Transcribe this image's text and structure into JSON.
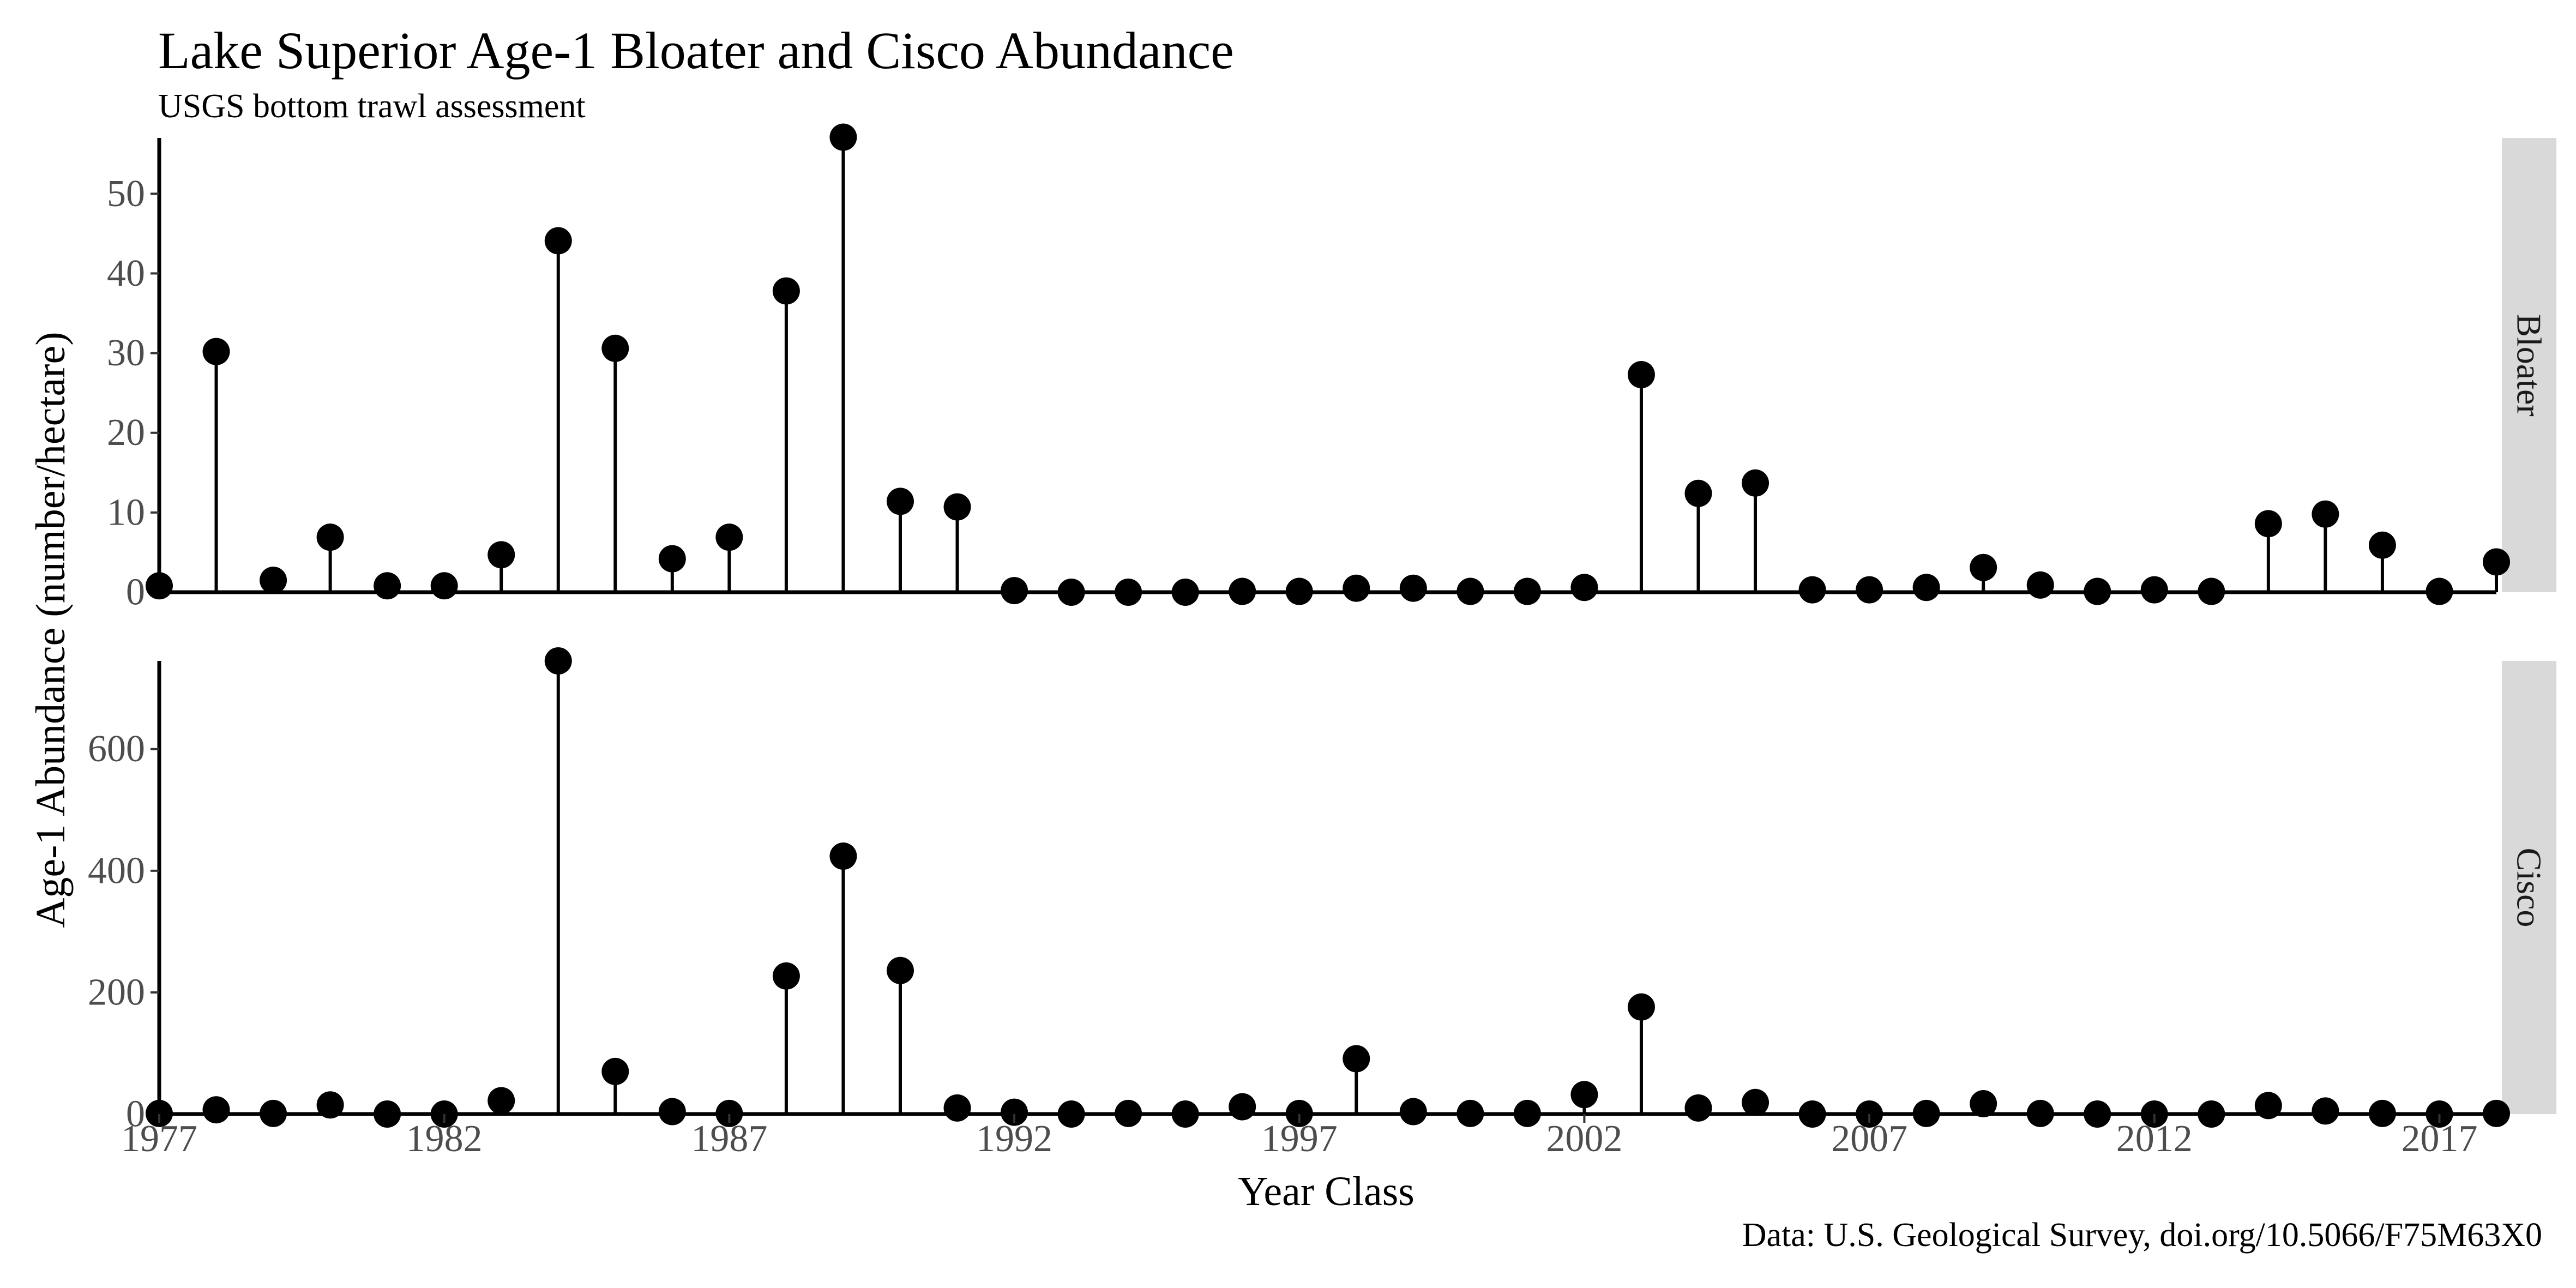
{
  "chart_data": {
    "type": "lollipop",
    "title": "Lake Superior Age-1 Bloater and Cisco Abundance",
    "subtitle": "USGS bottom trawl assessment",
    "caption": "Data: U.S. Geological Survey, doi.org/10.5066/F75M63X0",
    "xlabel": "Year Class",
    "ylabel": "Age-1 Abundance (number/hectare)",
    "x_ticks": [
      1977,
      1982,
      1987,
      1992,
      1997,
      2002,
      2007,
      2012,
      2017
    ],
    "x_range": [
      1977,
      2018
    ],
    "facets": [
      {
        "name": "Bloater",
        "ylim": [
          0,
          57
        ],
        "y_ticks": [
          0,
          10,
          20,
          30,
          40,
          50
        ],
        "x": [
          1977,
          1978,
          1979,
          1980,
          1981,
          1982,
          1983,
          1984,
          1985,
          1986,
          1987,
          1988,
          1989,
          1990,
          1991,
          1992,
          1993,
          1994,
          1995,
          1996,
          1997,
          1998,
          1999,
          2000,
          2001,
          2002,
          2003,
          2004,
          2005,
          2006,
          2007,
          2008,
          2009,
          2010,
          2011,
          2012,
          2013,
          2014,
          2015,
          2016,
          2017,
          2018
        ],
        "values": [
          0.8,
          30.2,
          1.5,
          6.9,
          0.8,
          0.8,
          4.7,
          44.1,
          30.6,
          4.2,
          6.9,
          37.8,
          57.1,
          11.4,
          10.7,
          0.2,
          0,
          0,
          0,
          0.1,
          0.1,
          0.5,
          0.5,
          0.1,
          0.1,
          0.6,
          27.3,
          12.4,
          13.7,
          0.3,
          0.3,
          0.6,
          3.1,
          0.9,
          0.1,
          0.3,
          0.1,
          8.6,
          9.8,
          5.9,
          0.1,
          3.8
        ]
      },
      {
        "name": "Cisco",
        "ylim": [
          0,
          745
        ],
        "y_ticks": [
          0,
          200,
          400,
          600
        ],
        "x": [
          1977,
          1978,
          1979,
          1980,
          1981,
          1982,
          1983,
          1984,
          1985,
          1986,
          1987,
          1988,
          1989,
          1990,
          1991,
          1992,
          1993,
          1994,
          1995,
          1996,
          1997,
          1998,
          1999,
          2000,
          2001,
          2002,
          2003,
          2004,
          2005,
          2006,
          2007,
          2008,
          2009,
          2010,
          2011,
          2012,
          2013,
          2014,
          2015,
          2016,
          2017,
          2018
        ],
        "values": [
          1,
          7,
          1,
          15,
          0,
          0,
          22,
          745,
          70,
          4,
          1,
          227,
          424,
          236,
          10,
          3,
          0,
          1,
          0,
          12,
          1,
          91,
          4,
          1,
          1,
          32,
          176,
          10,
          19,
          0,
          0,
          1,
          17,
          1,
          0,
          0,
          0,
          14,
          5,
          1,
          0,
          1
        ]
      }
    ]
  }
}
